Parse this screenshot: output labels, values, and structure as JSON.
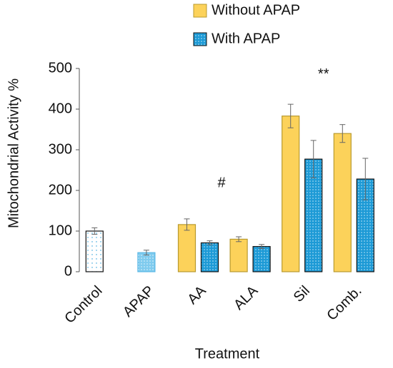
{
  "chart_data": {
    "type": "bar",
    "y_label": "Mitochondrial Activity %",
    "x_label": "Treatment",
    "categories": [
      "Control",
      "APAP",
      "AA",
      "ALA",
      "Sil",
      "Comb."
    ],
    "series": [
      {
        "name": "Without APAP",
        "color": "#fcd25a",
        "values": [
          null,
          null,
          116,
          80,
          383,
          340
        ],
        "errors": [
          null,
          null,
          14,
          6,
          29,
          22
        ]
      },
      {
        "name": "With APAP",
        "color": "#1d9ad6",
        "values": [
          null,
          47,
          71,
          62,
          277,
          228
        ],
        "errors": [
          null,
          6,
          5,
          5,
          46,
          51
        ]
      },
      {
        "color": "#ffffff",
        "values": [
          100,
          null,
          null,
          null,
          null,
          null
        ],
        "errors": [
          8,
          null,
          null,
          null,
          null,
          null
        ]
      }
    ],
    "annotations": [
      {
        "text": "#",
        "category": 3,
        "y": 217
      },
      {
        "text": "**",
        "category": 4,
        "y": 485
      }
    ],
    "ylim": [
      0,
      500
    ],
    "yticks": [
      0,
      100,
      200,
      300,
      400,
      500
    ]
  }
}
